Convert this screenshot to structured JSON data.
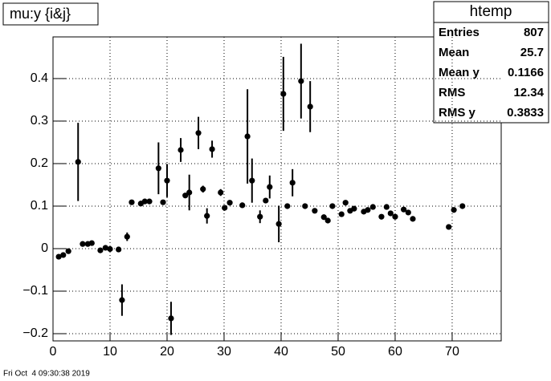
{
  "chart_data": {
    "type": "errorbar",
    "title": "mu:y {i&j}",
    "footer": "Fri Oct  4 09:30:38 2019",
    "x": [
      1.0,
      1.8,
      2.7,
      4.4,
      5.2,
      6.1,
      6.8,
      8.3,
      9.2,
      10.0,
      11.5,
      12.1,
      13.0,
      13.8,
      15.4,
      16.1,
      16.9,
      18.5,
      19.3,
      20.0,
      20.7,
      22.4,
      23.2,
      23.9,
      25.5,
      26.3,
      27.0,
      27.9,
      29.4,
      30.1,
      31.0,
      33.2,
      34.1,
      34.9,
      36.3,
      37.3,
      38.0,
      39.6,
      40.4,
      41.1,
      42.0,
      43.5,
      44.2,
      45.1,
      45.9,
      47.5,
      48.2,
      49.0,
      50.6,
      51.3,
      52.1,
      52.8,
      54.5,
      55.2,
      56.1,
      57.6,
      58.5,
      59.2,
      60.0,
      61.5,
      62.3,
      63.1,
      69.4,
      70.3,
      71.8
    ],
    "values": [
      -0.019,
      -0.015,
      -0.006,
      0.204,
      0.011,
      0.011,
      0.013,
      -0.004,
      0.002,
      -0.001,
      -0.002,
      -0.121,
      0.028,
      0.109,
      0.106,
      0.111,
      0.111,
      0.189,
      0.109,
      0.16,
      -0.164,
      0.232,
      0.125,
      0.132,
      0.272,
      0.14,
      0.077,
      0.234,
      0.132,
      0.096,
      0.108,
      0.102,
      0.264,
      0.16,
      0.075,
      0.113,
      0.145,
      0.058,
      0.364,
      0.1,
      0.155,
      0.394,
      0.1,
      0.334,
      0.089,
      0.074,
      0.066,
      0.1,
      0.081,
      0.108,
      0.089,
      0.094,
      0.087,
      0.091,
      0.098,
      0.075,
      0.098,
      0.083,
      0.075,
      0.092,
      0.085,
      0.07,
      0.051,
      0.091,
      0.1
    ],
    "errors": [
      0.004,
      0.004,
      0.004,
      0.092,
      0.004,
      0.004,
      0.004,
      0.004,
      0.004,
      0.004,
      0.004,
      0.037,
      0.01,
      0.004,
      0.004,
      0.004,
      0.004,
      0.061,
      0.004,
      0.039,
      0.039,
      0.028,
      0.006,
      0.042,
      0.038,
      0.008,
      0.018,
      0.02,
      0.008,
      0.004,
      0.004,
      0.004,
      0.111,
      0.052,
      0.015,
      0.004,
      0.027,
      0.043,
      0.087,
      0.004,
      0.032,
      0.088,
      0.004,
      0.06,
      0.004,
      0.006,
      0.004,
      0.004,
      0.004,
      0.004,
      0.004,
      0.004,
      0.004,
      0.004,
      0.004,
      0.004,
      0.004,
      0.004,
      0.004,
      0.004,
      0.004,
      0.004,
      0.004,
      0.004,
      0.004
    ],
    "color": "#000000",
    "xlim": [
      0,
      78.6
    ],
    "xticks": [
      0,
      10,
      20,
      30,
      40,
      50,
      60,
      70
    ],
    "ylim": [
      -0.217,
      0.498
    ],
    "yticks": [
      {
        "value": -0.2,
        "label": "−0.2"
      },
      {
        "value": -0.1,
        "label": "−0.1"
      },
      0,
      0.1,
      0.2,
      0.3,
      0.4
    ],
    "grid": true,
    "stats_box": {
      "title": "htemp",
      "rows": [
        [
          "Entries",
          807
        ],
        [
          "Mean",
          25.7
        ],
        [
          "Mean y",
          0.1166
        ],
        [
          "RMS",
          12.34
        ],
        [
          "RMS y",
          0.3833
        ]
      ]
    }
  }
}
